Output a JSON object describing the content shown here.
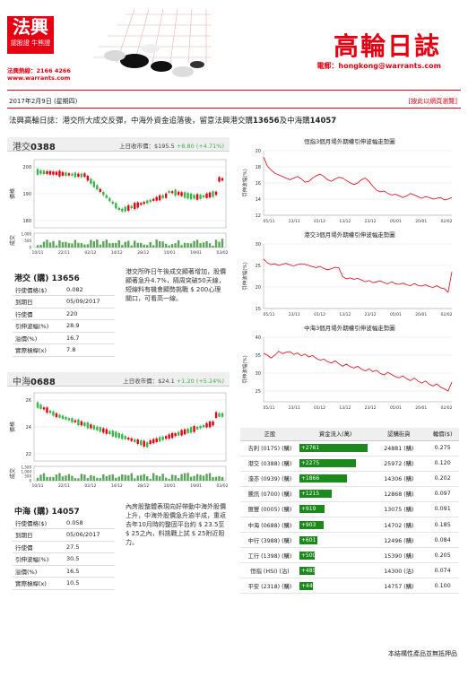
{
  "brand": {
    "logo_main": "法興",
    "logo_sub": "認股證 牛熊證",
    "hotline": "法興熱線：2166 4266",
    "website": "www.warrants.com",
    "title": "高輪日誌",
    "email": "電郵：hongkong@warrants.com"
  },
  "date": "2017年2月9日 (星期四)",
  "back_link": "[按此以網頁瀏覽]",
  "headline_prefix": "法興高輪日誌：港交所大成交反彈，中海外資金追落後，留意法興港交購",
  "headline_code1": "13656",
  "headline_mid": "及中海購",
  "headline_code2": "14057",
  "stock1": {
    "name": "港交",
    "code": "0388",
    "price_label": "上日收市價：$195.5",
    "change": "+8.80 (+4.71%)",
    "ylabel_price": "價格",
    "ylabel_volume": "成交",
    "y_ticks": [
      "200",
      "190",
      "180"
    ],
    "vol_ticks": [
      "1,000",
      "500",
      "0"
    ],
    "x_ticks": [
      "10/11",
      "22/11",
      "02/12",
      "14/12",
      "28/12",
      "10/01",
      "19/01",
      "03/02"
    ]
  },
  "warrant1": {
    "title": "港交 (購) 13656",
    "rows": [
      [
        "行使價格($)",
        "0.082"
      ],
      [
        "到期日",
        "05/09/2017"
      ],
      [
        "行使價",
        "220"
      ],
      [
        "引伸波幅(%)",
        "28.9"
      ],
      [
        "溢價(%)",
        "16.7"
      ],
      [
        "實際槓桿(x)",
        "7.8"
      ]
    ],
    "comment": "港交所昨日午後成交顯著增加，股價顯著急升4.7%，隔周突破50天線，短線料有機會顯勢挑戰 $ 200心理關口，可看高一線。"
  },
  "stock2": {
    "name": "中海",
    "code": "0688",
    "price_label": "上日收市價：$24.1",
    "change": "+1.20 (+5.24%)",
    "ylabel_price": "價格",
    "ylabel_volume": "成交",
    "y_ticks": [
      "26",
      "24",
      "22"
    ],
    "vol_ticks": [
      "1,500",
      "1,000",
      "500",
      "0"
    ],
    "x_ticks": [
      "10/11",
      "22/11",
      "02/12",
      "14/12",
      "28/12",
      "10/01",
      "19/01",
      "03/02"
    ]
  },
  "warrant2": {
    "title": "中海 (購) 14057",
    "rows": [
      [
        "行使價格($)",
        "0.058"
      ],
      [
        "到期日",
        "05/06/2017"
      ],
      [
        "行使價",
        "27.5"
      ],
      [
        "引伸波幅(%)",
        "30.5"
      ],
      [
        "溢價(%)",
        "16.5"
      ],
      [
        "實際槓桿(x)",
        "10.5"
      ]
    ],
    "comment": "內房股整體表現向好帶動中海外股價上升，中海外股價急升逾半成，重返去年10月時的整固平台約 $ 23.5至 $ 25之內，料挑戰上試 $ 25附近阻力。"
  },
  "iv_charts": [
    {
      "title": "恒指3個月場外期權引伸波幅走勢圖",
      "ylabel": "引伸波幅(%)",
      "y_ticks": [
        "20",
        "18",
        "16",
        "14",
        "12"
      ],
      "ylim": [
        12,
        20
      ],
      "values": [
        19.2,
        18.1,
        17.6,
        17.2,
        17.0,
        16.8,
        16.6,
        16.4,
        16.6,
        16.8,
        16.5,
        16.1,
        16.2,
        16.6,
        16.9,
        17.1,
        16.8,
        16.4,
        16.2,
        16.5,
        16.7,
        16.6,
        16.3,
        16.0,
        15.8,
        16.0,
        16.4,
        16.6,
        16.2,
        15.6,
        15.1,
        14.9,
        15.0,
        14.7,
        14.5,
        14.6,
        14.4,
        14.2,
        14.4,
        14.7,
        14.5,
        14.3,
        14.1,
        14.3,
        14.2,
        14.0,
        14.1,
        14.2,
        13.9,
        14.0,
        14.2
      ]
    },
    {
      "title": "港交3個月場外期權引伸波幅走勢圖",
      "ylabel": "引伸波幅(%)",
      "y_ticks": [
        "30",
        "25",
        "20",
        "15"
      ],
      "ylim": [
        15,
        30
      ],
      "values": [
        26.5,
        25.6,
        25.2,
        25.4,
        25.0,
        25.3,
        25.5,
        25.1,
        24.9,
        25.2,
        25.4,
        25.3,
        25.0,
        24.7,
        24.5,
        24.8,
        24.3,
        24.0,
        24.2,
        24.6,
        24.4,
        22.4,
        21.9,
        22.1,
        21.8,
        22.0,
        21.6,
        21.2,
        21.5,
        21.0,
        21.2,
        21.4,
        21.0,
        20.7,
        21.2,
        20.8,
        20.6,
        20.9,
        20.5,
        20.3,
        20.8,
        20.4,
        20.2,
        20.5,
        20.1,
        19.9,
        20.3,
        19.8,
        19.6,
        18.8,
        23.5
      ]
    },
    {
      "title": "中海3個月場外期權引伸波幅走勢圖",
      "ylabel": "引伸波幅(%)",
      "y_ticks": [
        "40",
        "35",
        "30",
        "25"
      ],
      "ylim": [
        22,
        40
      ],
      "values": [
        35.5,
        35.0,
        34.2,
        35.0,
        36.1,
        35.4,
        35.8,
        36.0,
        35.2,
        35.6,
        34.8,
        35.3,
        34.5,
        34.9,
        34.1,
        33.6,
        33.9,
        33.2,
        32.8,
        33.4,
        32.6,
        31.9,
        32.5,
        31.8,
        31.4,
        31.9,
        31.1,
        30.6,
        31.2,
        30.4,
        30.8,
        29.9,
        29.5,
        30.2,
        29.6,
        29.0,
        28.7,
        29.2,
        28.4,
        27.9,
        28.6,
        27.8,
        27.2,
        27.8,
        26.9,
        26.4,
        27.0,
        26.1,
        25.6,
        25.0,
        27.5
      ]
    }
  ],
  "iv_x_ticks": [
    "05/11",
    "23/11",
    "01/12",
    "13/12",
    "23/12",
    "05/01",
    "20/01",
    "02/02"
  ],
  "flow_table": {
    "headers": [
      "正股",
      "資金流入(萬)",
      "認購街貨",
      "輪價($)"
    ],
    "max": 2761,
    "rows": [
      {
        "stock": "吉利 (0175) (購)",
        "flow": 2761,
        "flow_label": "+2761",
        "oi": "24881 (購)",
        "price": "0.275"
      },
      {
        "stock": "港交 (0388) (購)",
        "flow": 2275,
        "flow_label": "+2275",
        "oi": "25972 (購)",
        "price": "0.120"
      },
      {
        "stock": "濠亦 (0939) (購)",
        "flow": 1866,
        "flow_label": "+1866",
        "oi": "14306 (購)",
        "price": "0.202"
      },
      {
        "stock": "騰訊 (0700) (購)",
        "flow": 1215,
        "flow_label": "+1215",
        "oi": "12868 (購)",
        "price": "0.097"
      },
      {
        "stock": "匯豐 (0005) (購)",
        "flow": 919,
        "flow_label": "+919",
        "oi": "13075 (購)",
        "price": "0.091"
      },
      {
        "stock": "中海 (0688) (購)",
        "flow": 903,
        "flow_label": "+903",
        "oi": "14702 (購)",
        "price": "0.185"
      },
      {
        "stock": "中行 (3988) (購)",
        "flow": 601,
        "flow_label": "+601",
        "oi": "12496 (購)",
        "price": "0.084"
      },
      {
        "stock": "工行 (1398) (購)",
        "flow": 500,
        "flow_label": "+500",
        "oi": "15390 (購)",
        "price": "0.205"
      },
      {
        "stock": "恒指 (HSI) (沽)",
        "flow": 485,
        "flow_label": "+485",
        "oi": "14300 (沽)",
        "price": "0.074"
      },
      {
        "stock": "平安 (2318) (購)",
        "flow": 440,
        "flow_label": "+440",
        "oi": "14757 (購)",
        "price": "0.100"
      }
    ]
  },
  "footer": "本結構性產品並無抵押品",
  "colors": {
    "accent": "#e60012",
    "bar_green": "#1a8a1a",
    "up_green": "#39b54a",
    "candle_red": "#e60012",
    "line_red": "#e60012"
  }
}
